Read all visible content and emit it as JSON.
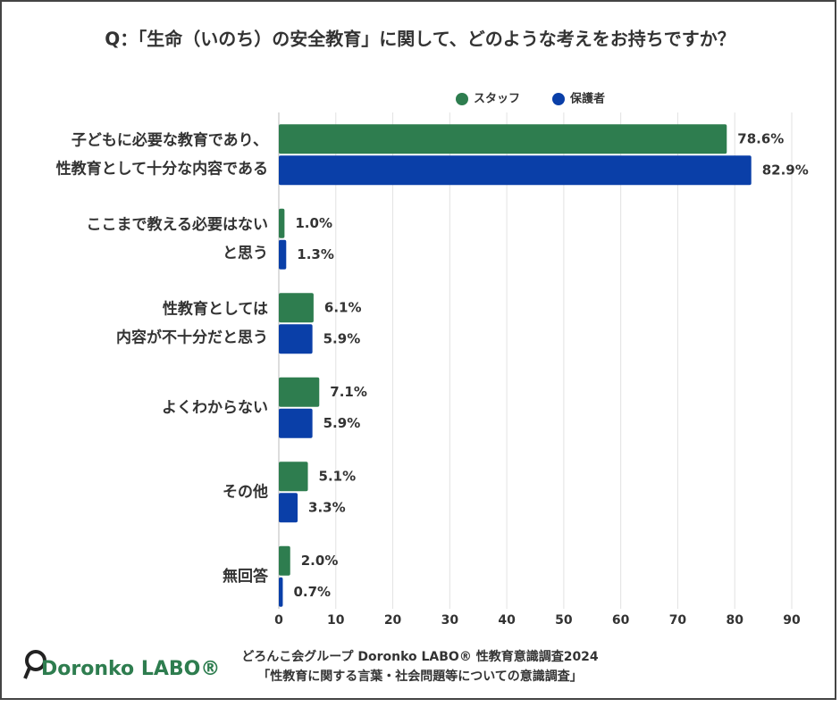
{
  "chart_data": {
    "type": "hbar",
    "title": "Q：「生命（いのち）の安全教育」に関して、どのような考えをお持ちですか？",
    "categories": [
      "子どもに必要な教育であり、\n性教育として十分な内容である",
      "ここまで教える必要はない\nと思う",
      "性教育としては\n内容が不十分だと思う",
      "よくわからない",
      "その他",
      "無回答"
    ],
    "series": [
      {
        "name": "スタッフ",
        "color": "#2e7d4f",
        "values": [
          78.6,
          1.0,
          6.1,
          7.1,
          5.1,
          2.0
        ],
        "value_labels": [
          "78.6%",
          "1.0%",
          "6.1%",
          "7.1%",
          "5.1%",
          "2.0%"
        ]
      },
      {
        "name": "保護者",
        "color": "#0a3fa8",
        "values": [
          82.9,
          1.3,
          5.9,
          5.9,
          3.3,
          0.7
        ],
        "value_labels": [
          "82.9%",
          "1.3%",
          "5.9%",
          "5.9%",
          "3.3%",
          "0.7%"
        ]
      }
    ],
    "xlim": [
      0,
      90
    ],
    "xticks": [
      0,
      10,
      20,
      30,
      40,
      50,
      60,
      70,
      80,
      90
    ],
    "grid": true,
    "legend": "top",
    "source": [
      "どろんこ会グループ Doronko LABO® 性教育意識調査2024",
      "「性教育に関する言葉・社会問題等についての意識調査」"
    ],
    "logo": "Doronko LABO®"
  }
}
